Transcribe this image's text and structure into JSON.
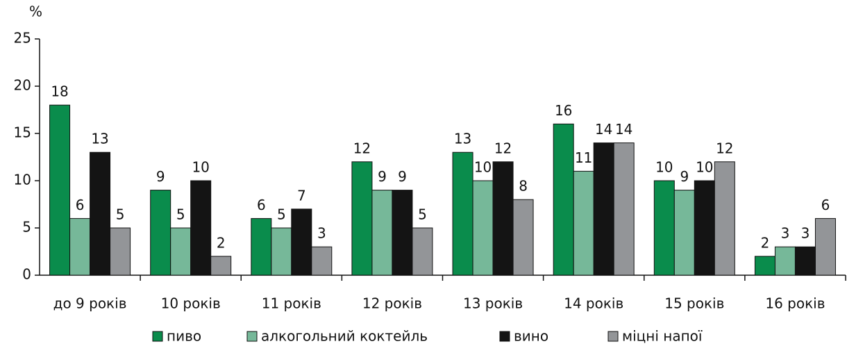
{
  "chart_data": {
    "type": "bar",
    "y_label": "%",
    "categories": [
      "до 9 років",
      "10 років",
      "11 років",
      "12 років",
      "13 років",
      "14 років",
      "15 років",
      "16 років"
    ],
    "series": [
      {
        "name": "пиво",
        "color": "#0a8c4c",
        "values": [
          18,
          9,
          6,
          12,
          13,
          16,
          10,
          2
        ]
      },
      {
        "name": "алкогольний коктейль",
        "color": "#76b899",
        "values": [
          6,
          5,
          5,
          9,
          10,
          11,
          9,
          3
        ]
      },
      {
        "name": "вино",
        "color": "#141414",
        "values": [
          13,
          10,
          7,
          9,
          12,
          14,
          10,
          3
        ]
      },
      {
        "name": "міцні напої",
        "color": "#939598",
        "values": [
          5,
          2,
          3,
          5,
          8,
          14,
          12,
          6
        ]
      }
    ],
    "ylim": [
      0,
      25
    ],
    "yticks": [
      0,
      5,
      10,
      15,
      20,
      25
    ],
    "grid": false,
    "legend": "bottom"
  }
}
